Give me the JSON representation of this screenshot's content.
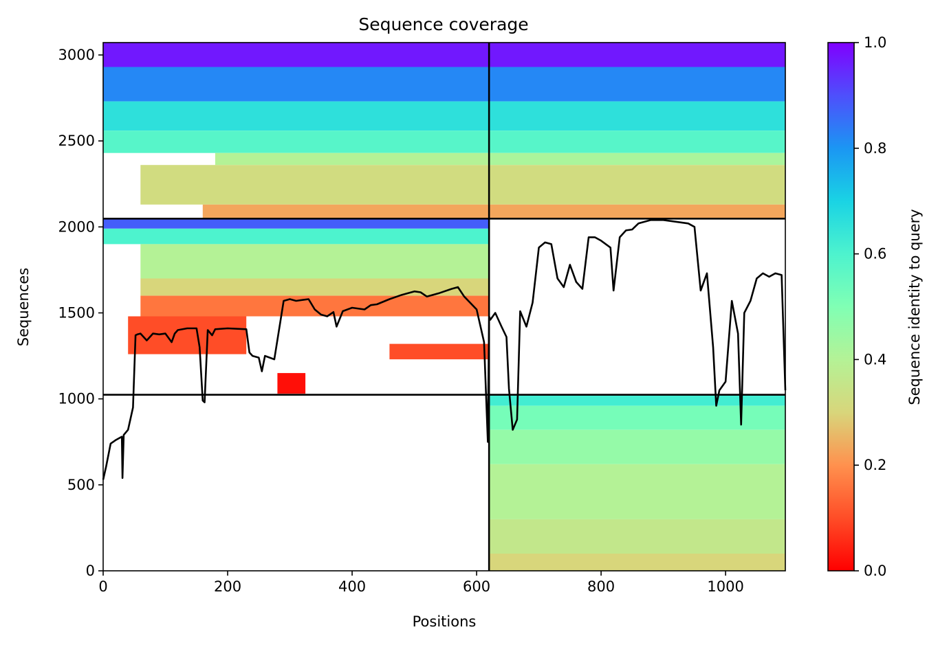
{
  "chart_data": {
    "type": "heatmap",
    "title": "Sequence coverage",
    "xlabel": "Positions",
    "ylabel": "Sequences",
    "xlim": [
      0,
      1096
    ],
    "ylim": [
      0,
      3072
    ],
    "xticks": [
      "0",
      "200",
      "400",
      "600",
      "800",
      "1000"
    ],
    "xtick_values": [
      0,
      200,
      400,
      600,
      800,
      1000
    ],
    "yticks": [
      "0",
      "500",
      "1000",
      "1500",
      "2000",
      "2500",
      "3000"
    ],
    "ytick_values": [
      0,
      500,
      1000,
      1500,
      2000,
      2500,
      3000
    ],
    "colormap": "rainbow_r",
    "colorbar": {
      "label": "Sequence identity to query",
      "ticks": [
        "0.0",
        "0.2",
        "0.4",
        "0.6",
        "0.8",
        "1.0"
      ],
      "tick_values": [
        0.0,
        0.2,
        0.4,
        0.6,
        0.8,
        1.0
      ],
      "range": [
        0.0,
        1.0
      ]
    },
    "chain_boundary_x": 620,
    "block_boundaries_y": [
      1024,
      2048
    ],
    "blocks": [
      {
        "x": [
          0,
          620
        ],
        "y": [
          2048,
          3072
        ],
        "rows": [
          {
            "y": [
              2930,
              3072
            ],
            "identity": 0.97
          },
          {
            "y": [
              2730,
              2930
            ],
            "identity": 0.82
          },
          {
            "y": [
              2560,
              2730
            ],
            "identity": 0.66
          },
          {
            "y": [
              2430,
              2560
            ],
            "identity": 0.58
          },
          {
            "y": [
              2360,
              2430
            ],
            "identity": 0.4,
            "x": [
              180,
              620
            ]
          },
          {
            "y": [
              2130,
              2360
            ],
            "identity": 0.32,
            "x": [
              60,
              620
            ]
          },
          {
            "y": [
              2048,
              2130
            ],
            "identity": 0.23,
            "x": [
              160,
              620
            ]
          }
        ]
      },
      {
        "x": [
          620,
          1096
        ],
        "y": [
          2048,
          3072
        ],
        "rows": [
          {
            "y": [
              2930,
              3072
            ],
            "identity": 0.97
          },
          {
            "y": [
              2730,
              2930
            ],
            "identity": 0.82
          },
          {
            "y": [
              2560,
              2730
            ],
            "identity": 0.66
          },
          {
            "y": [
              2430,
              2560
            ],
            "identity": 0.58
          },
          {
            "y": [
              2360,
              2430
            ],
            "identity": 0.42
          },
          {
            "y": [
              2130,
              2360
            ],
            "identity": 0.32
          },
          {
            "y": [
              2048,
              2130
            ],
            "identity": 0.23
          }
        ]
      },
      {
        "x": [
          0,
          620
        ],
        "y": [
          1024,
          2048
        ],
        "rows": [
          {
            "y": [
              1990,
              2048
            ],
            "identity": 0.88
          },
          {
            "y": [
              1900,
              1990
            ],
            "identity": 0.6
          },
          {
            "y": [
              1700,
              1900
            ],
            "identity": 0.4,
            "x": [
              60,
              620
            ]
          },
          {
            "y": [
              1600,
              1700
            ],
            "identity": 0.3,
            "x": [
              60,
              620
            ]
          },
          {
            "y": [
              1480,
              1600
            ],
            "identity": 0.16,
            "x": [
              60,
              620
            ]
          },
          {
            "y": [
              1260,
              1480
            ],
            "identity": 0.1,
            "x": [
              40,
              230
            ]
          },
          {
            "y": [
              1230,
              1320
            ],
            "identity": 0.1,
            "x": [
              460,
              620
            ]
          },
          {
            "y": [
              1030,
              1150
            ],
            "identity": 0.02,
            "x": [
              280,
              325
            ]
          }
        ]
      },
      {
        "x": [
          620,
          1096
        ],
        "y": [
          0,
          1024
        ],
        "rows": [
          {
            "y": [
              960,
              1024
            ],
            "identity": 0.62
          },
          {
            "y": [
              820,
              960
            ],
            "identity": 0.52
          },
          {
            "y": [
              620,
              820
            ],
            "identity": 0.46
          },
          {
            "y": [
              300,
              620
            ],
            "identity": 0.4
          },
          {
            "y": [
              100,
              300
            ],
            "identity": 0.36
          },
          {
            "y": [
              0,
              100
            ],
            "identity": 0.3
          }
        ]
      }
    ],
    "coverage_line": {
      "name": "coverage",
      "x": [
        0,
        5,
        12,
        20,
        30,
        31,
        33,
        40,
        48,
        52,
        55,
        60,
        70,
        80,
        90,
        100,
        110,
        115,
        120,
        135,
        150,
        155,
        160,
        163,
        168,
        175,
        180,
        200,
        230,
        235,
        240,
        250,
        255,
        260,
        275,
        290,
        300,
        310,
        320,
        330,
        340,
        350,
        360,
        370,
        375,
        385,
        400,
        420,
        430,
        440,
        460,
        480,
        500,
        510,
        520,
        540,
        560,
        570,
        580,
        600,
        612,
        618,
        620,
        622,
        630,
        640,
        648,
        652,
        658,
        665,
        670,
        680,
        690,
        700,
        710,
        720,
        730,
        740,
        750,
        760,
        770,
        780,
        790,
        800,
        815,
        820,
        830,
        840,
        850,
        860,
        880,
        900,
        920,
        940,
        950,
        960,
        970,
        980,
        985,
        990,
        1000,
        1010,
        1020,
        1025,
        1030,
        1040,
        1050,
        1060,
        1070,
        1080,
        1090,
        1096
      ],
      "y": [
        530,
        610,
        740,
        760,
        780,
        540,
        790,
        820,
        950,
        1370,
        1375,
        1380,
        1340,
        1380,
        1375,
        1380,
        1330,
        1380,
        1400,
        1410,
        1410,
        1300,
        990,
        980,
        1400,
        1370,
        1405,
        1410,
        1405,
        1270,
        1250,
        1240,
        1160,
        1250,
        1230,
        1570,
        1580,
        1570,
        1575,
        1580,
        1520,
        1490,
        1480,
        1505,
        1420,
        1510,
        1530,
        1520,
        1545,
        1550,
        1580,
        1605,
        1625,
        1620,
        1595,
        1615,
        1640,
        1650,
        1595,
        1520,
        1330,
        750,
        1480,
        1460,
        1500,
        1420,
        1360,
        1060,
        820,
        880,
        1510,
        1420,
        1560,
        1880,
        1910,
        1900,
        1700,
        1650,
        1780,
        1680,
        1640,
        1940,
        1940,
        1920,
        1880,
        1630,
        1940,
        1980,
        1985,
        2020,
        2040,
        2040,
        2030,
        2020,
        2000,
        1630,
        1730,
        1300,
        960,
        1050,
        1100,
        1570,
        1380,
        850,
        1500,
        1570,
        1700,
        1730,
        1710,
        1730,
        1720,
        1050
      ]
    }
  }
}
